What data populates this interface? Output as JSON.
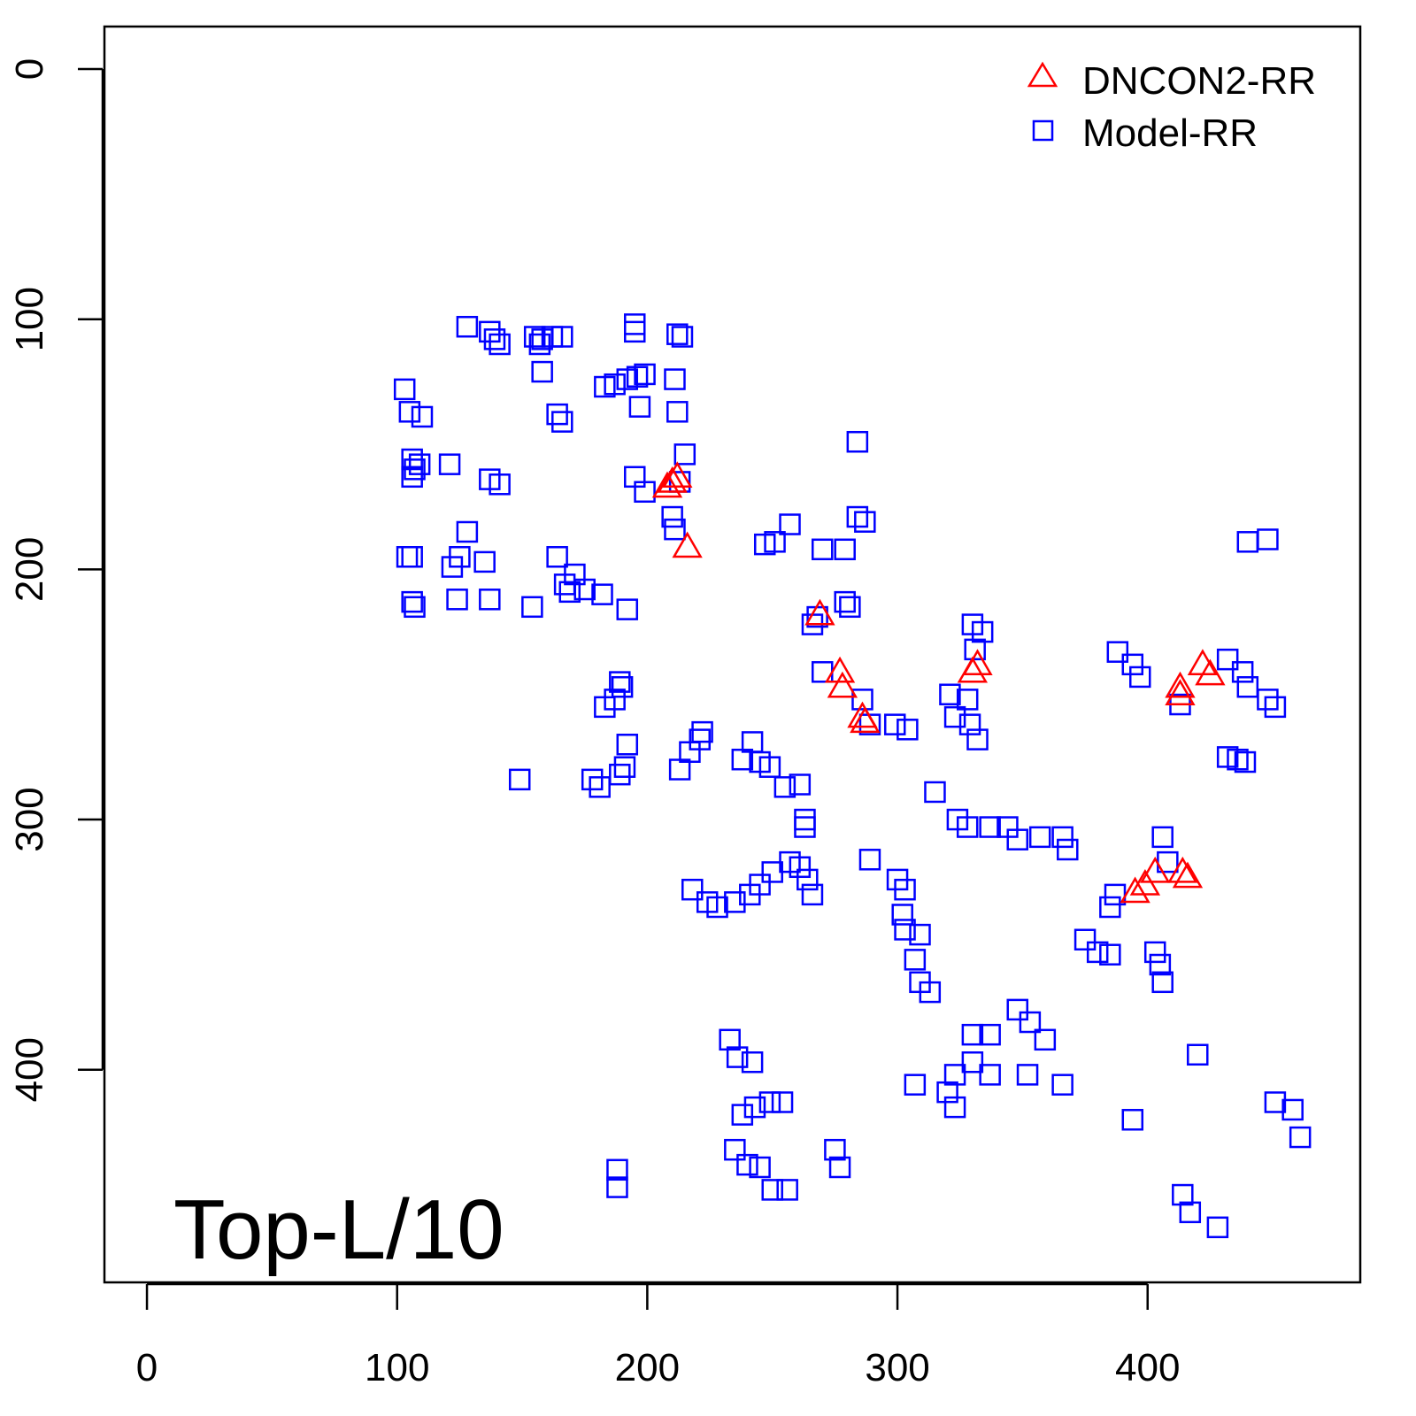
{
  "chart_data": {
    "type": "scatter",
    "title": "",
    "annotation": "Top-L/10",
    "xlabel": "",
    "ylabel": "",
    "xlim": [
      -17,
      485
    ],
    "ylim": [
      485,
      -17
    ],
    "y_inverted": true,
    "xticks": [
      0,
      100,
      200,
      300,
      400
    ],
    "yticks": [
      0,
      100,
      200,
      300,
      400
    ],
    "grid": false,
    "legend_position": "top-right",
    "colors": {
      "DNCON2-RR": "#FF0000",
      "Model-RR": "#0000FF"
    },
    "series": [
      {
        "name": "DNCON2-RR",
        "marker": "triangle",
        "points": [
          [
            210,
            165
          ],
          [
            212,
            163
          ],
          [
            208,
            167
          ],
          [
            216,
            191
          ],
          [
            269,
            218
          ],
          [
            277,
            241
          ],
          [
            278,
            247
          ],
          [
            286,
            259
          ],
          [
            287,
            261
          ],
          [
            330,
            241
          ],
          [
            332,
            238
          ],
          [
            413,
            247
          ],
          [
            413,
            250
          ],
          [
            422,
            238
          ],
          [
            425,
            242
          ],
          [
            395,
            329
          ],
          [
            399,
            326
          ],
          [
            403,
            321
          ],
          [
            414,
            321
          ],
          [
            416,
            323
          ]
        ]
      },
      {
        "name": "Model-RR",
        "marker": "square",
        "points": [
          [
            128,
            103
          ],
          [
            137,
            105
          ],
          [
            139,
            108
          ],
          [
            141,
            110
          ],
          [
            155,
            107
          ],
          [
            158,
            108
          ],
          [
            162,
            107
          ],
          [
            166,
            107
          ],
          [
            157,
            110
          ],
          [
            158,
            121
          ],
          [
            195,
            102
          ],
          [
            195,
            105
          ],
          [
            212,
            106
          ],
          [
            214,
            107
          ],
          [
            103,
            128
          ],
          [
            105,
            137
          ],
          [
            110,
            139
          ],
          [
            106,
            156
          ],
          [
            107,
            160
          ],
          [
            106,
            163
          ],
          [
            109,
            158
          ],
          [
            121,
            158
          ],
          [
            137,
            164
          ],
          [
            141,
            166
          ],
          [
            164,
            138
          ],
          [
            166,
            141
          ],
          [
            183,
            127
          ],
          [
            187,
            126
          ],
          [
            192,
            124
          ],
          [
            196,
            123
          ],
          [
            199,
            122
          ],
          [
            197,
            135
          ],
          [
            211,
            124
          ],
          [
            212,
            137
          ],
          [
            215,
            154
          ],
          [
            195,
            163
          ],
          [
            199,
            169
          ],
          [
            210,
            179
          ],
          [
            211,
            184
          ],
          [
            213,
            165
          ],
          [
            284,
            149
          ],
          [
            104,
            195
          ],
          [
            106,
            195
          ],
          [
            106,
            213
          ],
          [
            107,
            215
          ],
          [
            122,
            199
          ],
          [
            125,
            195
          ],
          [
            128,
            185
          ],
          [
            135,
            197
          ],
          [
            124,
            212
          ],
          [
            137,
            212
          ],
          [
            154,
            215
          ],
          [
            164,
            195
          ],
          [
            167,
            206
          ],
          [
            171,
            202
          ],
          [
            169,
            209
          ],
          [
            175,
            208
          ],
          [
            182,
            210
          ],
          [
            192,
            216
          ],
          [
            247,
            190
          ],
          [
            251,
            189
          ],
          [
            257,
            182
          ],
          [
            270,
            192
          ],
          [
            279,
            192
          ],
          [
            284,
            179
          ],
          [
            287,
            181
          ],
          [
            448,
            188
          ],
          [
            440,
            189
          ],
          [
            266,
            222
          ],
          [
            268,
            219
          ],
          [
            279,
            213
          ],
          [
            281,
            215
          ],
          [
            270,
            241
          ],
          [
            286,
            252
          ],
          [
            289,
            262
          ],
          [
            330,
            222
          ],
          [
            334,
            225
          ],
          [
            331,
            232
          ],
          [
            321,
            250
          ],
          [
            328,
            252
          ],
          [
            323,
            259
          ],
          [
            329,
            262
          ],
          [
            332,
            268
          ],
          [
            299,
            262
          ],
          [
            304,
            264
          ],
          [
            388,
            233
          ],
          [
            394,
            238
          ],
          [
            397,
            243
          ],
          [
            432,
            236
          ],
          [
            438,
            241
          ],
          [
            440,
            247
          ],
          [
            448,
            252
          ],
          [
            451,
            255
          ],
          [
            432,
            275
          ],
          [
            436,
            276
          ],
          [
            439,
            277
          ],
          [
            413,
            254
          ],
          [
            183,
            255
          ],
          [
            187,
            252
          ],
          [
            190,
            247
          ],
          [
            189,
            245
          ],
          [
            192,
            270
          ],
          [
            191,
            279
          ],
          [
            189,
            282
          ],
          [
            178,
            284
          ],
          [
            181,
            287
          ],
          [
            149,
            284
          ],
          [
            213,
            280
          ],
          [
            217,
            273
          ],
          [
            221,
            268
          ],
          [
            222,
            265
          ],
          [
            242,
            269
          ],
          [
            238,
            276
          ],
          [
            245,
            277
          ],
          [
            249,
            279
          ],
          [
            255,
            287
          ],
          [
            261,
            286
          ],
          [
            263,
            300
          ],
          [
            263,
            303
          ],
          [
            218,
            328
          ],
          [
            224,
            333
          ],
          [
            228,
            335
          ],
          [
            235,
            333
          ],
          [
            241,
            330
          ],
          [
            245,
            326
          ],
          [
            250,
            321
          ],
          [
            257,
            317
          ],
          [
            261,
            319
          ],
          [
            264,
            324
          ],
          [
            266,
            330
          ],
          [
            289,
            316
          ],
          [
            300,
            324
          ],
          [
            303,
            328
          ],
          [
            302,
            338
          ],
          [
            303,
            344
          ],
          [
            309,
            346
          ],
          [
            307,
            356
          ],
          [
            309,
            365
          ],
          [
            313,
            369
          ],
          [
            315,
            289
          ],
          [
            324,
            300
          ],
          [
            328,
            303
          ],
          [
            337,
            303
          ],
          [
            344,
            303
          ],
          [
            348,
            308
          ],
          [
            357,
            307
          ],
          [
            366,
            307
          ],
          [
            368,
            312
          ],
          [
            375,
            348
          ],
          [
            380,
            353
          ],
          [
            385,
            354
          ],
          [
            385,
            335
          ],
          [
            387,
            330
          ],
          [
            406,
            307
          ],
          [
            408,
            317
          ],
          [
            403,
            353
          ],
          [
            405,
            358
          ],
          [
            406,
            365
          ],
          [
            420,
            394
          ],
          [
            414,
            450
          ],
          [
            417,
            457
          ],
          [
            428,
            463
          ],
          [
            451,
            413
          ],
          [
            458,
            416
          ],
          [
            461,
            427
          ],
          [
            394,
            420
          ],
          [
            348,
            376
          ],
          [
            353,
            381
          ],
          [
            359,
            388
          ],
          [
            352,
            402
          ],
          [
            366,
            406
          ],
          [
            330,
            386
          ],
          [
            337,
            386
          ],
          [
            330,
            397
          ],
          [
            323,
            402
          ],
          [
            337,
            402
          ],
          [
            320,
            409
          ],
          [
            323,
            415
          ],
          [
            307,
            406
          ],
          [
            233,
            388
          ],
          [
            236,
            395
          ],
          [
            242,
            397
          ],
          [
            238,
            418
          ],
          [
            243,
            415
          ],
          [
            249,
            413
          ],
          [
            254,
            413
          ],
          [
            235,
            432
          ],
          [
            240,
            438
          ],
          [
            245,
            439
          ],
          [
            250,
            448
          ],
          [
            256,
            448
          ],
          [
            188,
            440
          ],
          [
            188,
            447
          ],
          [
            275,
            432
          ],
          [
            277,
            439
          ]
        ]
      }
    ]
  }
}
